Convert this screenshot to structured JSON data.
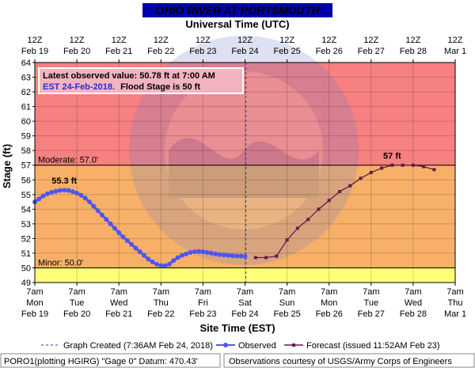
{
  "header": {
    "title": "OHIO RIVER AT PORTSMOUTH",
    "top_axis_title": "Universal Time (UTC)"
  },
  "annotation": {
    "line1": "Latest observed value: 50.78 ft at 7:00 AM",
    "line2a": "EST 24-Feb-2018.",
    "line2b": "Flood Stage is 50 ft"
  },
  "footer": {
    "legend_created": "Graph Created (7:36AM Feb 24, 2018)",
    "legend_observed": "Observed",
    "legend_forecast": "Forecast (issued 11:52AM Feb 23)",
    "station": "PORO1(plotting HGIRG) \"Gage 0\" Datum: 470.43'",
    "credit": "Observations courtesy of USGS/Army Corps of Engineers"
  },
  "colors": {
    "major_band": "#f78080",
    "moderate_band": "#f8b069",
    "minor_band": "#ffff77",
    "plot_bg": "#ffffff",
    "observed": "#4e56ee",
    "forecast": "#661a4c",
    "title_bar": "#0000aa",
    "created_line": "#3333cc"
  },
  "chart_data": {
    "type": "line",
    "title": "OHIO RIVER AT PORTSMOUTH",
    "xlabel": "Site Time (EST)",
    "ylabel": "Stage (ft)",
    "top_xlabel": "Universal Time (UTC)",
    "ylim": [
      49,
      64
    ],
    "y_ticks": [
      49,
      50,
      51,
      52,
      53,
      54,
      55,
      56,
      57,
      58,
      59,
      60,
      61,
      62,
      63,
      64
    ],
    "x_unit": "day offset from Feb 19 7am EST",
    "xlim": [
      0,
      10
    ],
    "bottom_ticks": [
      {
        "x": 0,
        "l1": "7am",
        "l2": "Mon",
        "l3": "Feb 19"
      },
      {
        "x": 1,
        "l1": "7am",
        "l2": "Tue",
        "l3": "Feb 20"
      },
      {
        "x": 2,
        "l1": "7am",
        "l2": "Wed",
        "l3": "Feb 21"
      },
      {
        "x": 3,
        "l1": "7am",
        "l2": "Thu",
        "l3": "Feb 22"
      },
      {
        "x": 4,
        "l1": "7am",
        "l2": "Fri",
        "l3": "Feb 23"
      },
      {
        "x": 5,
        "l1": "7am",
        "l2": "Sat",
        "l3": "Feb 24"
      },
      {
        "x": 6,
        "l1": "7am",
        "l2": "Sun",
        "l3": "Feb 25"
      },
      {
        "x": 7,
        "l1": "7am",
        "l2": "Mon",
        "l3": "Feb 26"
      },
      {
        "x": 8,
        "l1": "7am",
        "l2": "Tue",
        "l3": "Feb 27"
      },
      {
        "x": 9,
        "l1": "7am",
        "l2": "Wed",
        "l3": "Feb 28"
      },
      {
        "x": 10,
        "l1": "7am",
        "l2": "Thu",
        "l3": "Mar 1"
      }
    ],
    "top_ticks": [
      {
        "x": 0,
        "l1": "12Z",
        "l2": "Feb 19"
      },
      {
        "x": 1,
        "l1": "12Z",
        "l2": "Feb 20"
      },
      {
        "x": 2,
        "l1": "12Z",
        "l2": "Feb 21"
      },
      {
        "x": 3,
        "l1": "12Z",
        "l2": "Feb 22"
      },
      {
        "x": 4,
        "l1": "12Z",
        "l2": "Feb 23"
      },
      {
        "x": 5,
        "l1": "12Z",
        "l2": "Feb 24"
      },
      {
        "x": 6,
        "l1": "12Z",
        "l2": "Feb 25"
      },
      {
        "x": 7,
        "l1": "12Z",
        "l2": "Feb 26"
      },
      {
        "x": 8,
        "l1": "12Z",
        "l2": "Feb 27"
      },
      {
        "x": 9,
        "l1": "12Z",
        "l2": "Feb 28"
      },
      {
        "x": 10,
        "l1": "12Z",
        "l2": "Mar 1"
      }
    ],
    "thresholds": [
      {
        "name": "Moderate",
        "value": 57.0,
        "label": "Moderate:  57.0'"
      },
      {
        "name": "Minor",
        "value": 50.0,
        "label": "Minor:  50.0'"
      }
    ],
    "bands": [
      {
        "from": 57,
        "to": 64,
        "color": "#f78080"
      },
      {
        "from": 50,
        "to": 57,
        "color": "#f8b069"
      },
      {
        "from": 49,
        "to": 50,
        "color": "#ffff77"
      }
    ],
    "created_x": 5.02,
    "series": [
      {
        "name": "Observed",
        "color": "#4e56ee",
        "points": [
          [
            0.0,
            54.5
          ],
          [
            0.1,
            54.7
          ],
          [
            0.2,
            54.9
          ],
          [
            0.3,
            55.05
          ],
          [
            0.4,
            55.15
          ],
          [
            0.5,
            55.22
          ],
          [
            0.6,
            55.28
          ],
          [
            0.7,
            55.3
          ],
          [
            0.8,
            55.28
          ],
          [
            0.9,
            55.2
          ],
          [
            1.0,
            55.1
          ],
          [
            1.1,
            54.95
          ],
          [
            1.2,
            54.75
          ],
          [
            1.3,
            54.5
          ],
          [
            1.4,
            54.2
          ],
          [
            1.5,
            53.9
          ],
          [
            1.6,
            53.6
          ],
          [
            1.7,
            53.3
          ],
          [
            1.8,
            53.0
          ],
          [
            1.9,
            52.7
          ],
          [
            2.0,
            52.4
          ],
          [
            2.1,
            52.1
          ],
          [
            2.2,
            51.85
          ],
          [
            2.3,
            51.6
          ],
          [
            2.4,
            51.35
          ],
          [
            2.5,
            51.1
          ],
          [
            2.6,
            50.85
          ],
          [
            2.7,
            50.6
          ],
          [
            2.8,
            50.4
          ],
          [
            2.9,
            50.25
          ],
          [
            3.0,
            50.15
          ],
          [
            3.1,
            50.15
          ],
          [
            3.2,
            50.25
          ],
          [
            3.3,
            50.5
          ],
          [
            3.4,
            50.7
          ],
          [
            3.5,
            50.85
          ],
          [
            3.6,
            50.95
          ],
          [
            3.7,
            51.05
          ],
          [
            3.8,
            51.1
          ],
          [
            3.9,
            51.12
          ],
          [
            4.0,
            51.1
          ],
          [
            4.1,
            51.05
          ],
          [
            4.2,
            51.0
          ],
          [
            4.3,
            50.95
          ],
          [
            4.4,
            50.9
          ],
          [
            4.5,
            50.88
          ],
          [
            4.6,
            50.85
          ],
          [
            4.7,
            50.83
          ],
          [
            4.8,
            50.81
          ],
          [
            4.9,
            50.8
          ],
          [
            5.0,
            50.78
          ]
        ]
      },
      {
        "name": "Forecast",
        "color": "#661a4c",
        "points": [
          [
            5.25,
            50.7
          ],
          [
            5.5,
            50.7
          ],
          [
            5.75,
            50.8
          ],
          [
            6.0,
            51.9
          ],
          [
            6.25,
            52.7
          ],
          [
            6.5,
            53.3
          ],
          [
            6.75,
            54.0
          ],
          [
            7.0,
            54.6
          ],
          [
            7.25,
            55.2
          ],
          [
            7.5,
            55.6
          ],
          [
            7.75,
            56.1
          ],
          [
            8.0,
            56.5
          ],
          [
            8.25,
            56.8
          ],
          [
            8.5,
            57.0
          ],
          [
            8.75,
            57.0
          ],
          [
            9.0,
            57.0
          ],
          [
            9.25,
            56.9
          ],
          [
            9.5,
            56.7
          ]
        ]
      }
    ],
    "annotations": [
      {
        "text": "55.3 ft",
        "x": 0.7,
        "y": 55.3,
        "color": "#4e56ee"
      },
      {
        "text": "57 ft",
        "x": 8.5,
        "y": 57.0,
        "color": "#661a4c"
      }
    ]
  }
}
